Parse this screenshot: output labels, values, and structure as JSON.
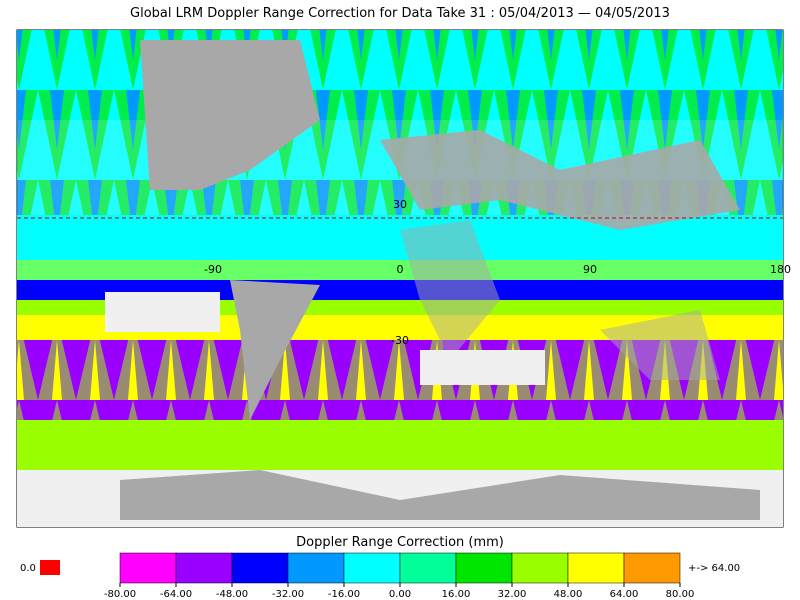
{
  "title": "Global LRM Doppler Range Correction for Data Take 31 : 05/04/2013 — 04/05/2013",
  "map": {
    "grid_labels": [
      "30",
      "-90",
      "0",
      "90",
      "180",
      "-30"
    ]
  },
  "colorbar": {
    "title": "Doppler Range Correction (mm)",
    "ticks": [
      {
        "value": -80,
        "label": "-80.00"
      },
      {
        "value": -64,
        "label": "-64.00"
      },
      {
        "value": -48,
        "label": "-48.00"
      },
      {
        "value": -32,
        "label": "-32.00"
      },
      {
        "value": -16,
        "label": "-16.00"
      },
      {
        "value": 0,
        "label": "0.00"
      },
      {
        "value": 16,
        "label": "16.00"
      },
      {
        "value": 32,
        "label": "32.00"
      },
      {
        "value": 48,
        "label": "48.00"
      },
      {
        "value": 64,
        "label": "64.00"
      },
      {
        "value": 80,
        "label": "80.00"
      }
    ],
    "colors": [
      "#ff00ff",
      "#9900ff",
      "#0000ff",
      "#0099ff",
      "#00ffff",
      "#00ff99",
      "#00e600",
      "#99ff00",
      "#ffff00",
      "#ff9900"
    ],
    "missing_label": "0.0",
    "missing_color": "#ff0000",
    "overflow_label": "+-> 64.00",
    "overflow_color": "#ff9900"
  }
}
